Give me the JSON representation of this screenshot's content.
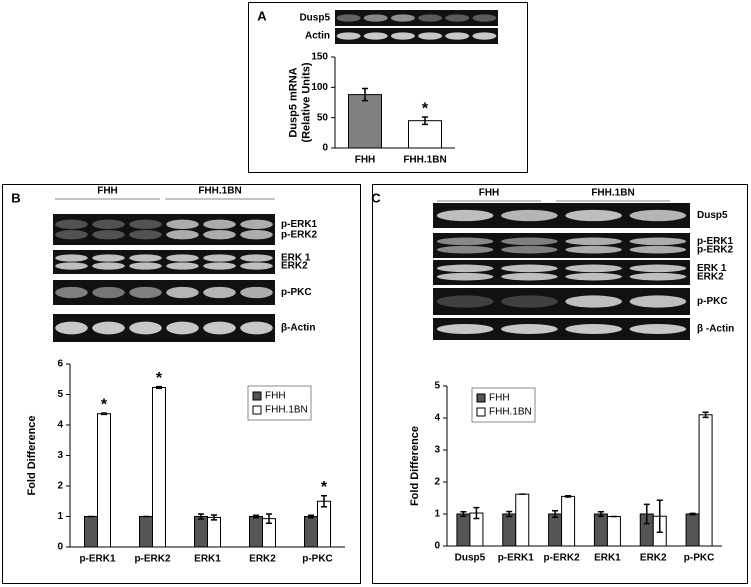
{
  "panels": [
    {
      "label": "A",
      "blots": [
        {
          "labels": [
            "Dusp5"
          ]
        },
        {
          "labels": [
            "Actin"
          ]
        }
      ]
    },
    {
      "label": "B",
      "groups": [
        "FHH",
        "FHH.1BN"
      ],
      "blots": [
        {
          "labels": [
            "p-ERK1",
            "p-ERK2"
          ]
        },
        {
          "labels": [
            "ERK 1",
            "ERK2"
          ]
        },
        {
          "labels": [
            "p-PKC"
          ]
        },
        {
          "labels": [
            "β-Actin"
          ]
        }
      ]
    },
    {
      "label": "C",
      "groups": [
        "FHH",
        "FHH.1BN"
      ],
      "blots": [
        {
          "labels": [
            "Dusp5"
          ]
        },
        {
          "labels": [
            "p-ERK1",
            "p-ERK2"
          ]
        },
        {
          "labels": [
            "ERK 1",
            "ERK2"
          ]
        },
        {
          "labels": [
            "p-PKC"
          ]
        },
        {
          "labels": [
            "β -Actin"
          ]
        }
      ]
    }
  ],
  "chart_data": [
    {
      "type": "bar",
      "ylabel": [
        "Dusp5 mRNA",
        "(Relative Units)"
      ],
      "categories": [
        "FHH",
        "FHH.1BN"
      ],
      "values": [
        88,
        45
      ],
      "errors": [
        10,
        6
      ],
      "colors": [
        "#808080",
        "#ffffff"
      ],
      "ylim": [
        0,
        150
      ],
      "yticks": [
        0,
        50,
        100,
        150
      ],
      "annotations": [
        {
          "text": "*",
          "category": "FHH.1BN"
        }
      ]
    },
    {
      "type": "bar",
      "ylabel": [
        "Fold Difference"
      ],
      "categories": [
        "p-ERK1",
        "p-ERK2",
        "ERK1",
        "ERK2",
        "p-PKC"
      ],
      "series": [
        {
          "name": "FHH",
          "color": "#555555",
          "values": [
            1,
            1,
            1,
            1,
            1
          ],
          "errors": [
            0,
            0,
            0.08,
            0.04,
            0.04
          ]
        },
        {
          "name": "FHH.1BN",
          "color": "#ffffff",
          "values": [
            4.37,
            5.23,
            0.97,
            0.93,
            1.5
          ],
          "errors": [
            0.02,
            0.03,
            0.08,
            0.15,
            0.18
          ]
        }
      ],
      "ylim": [
        0,
        6
      ],
      "yticks": [
        0,
        1,
        2,
        3,
        4,
        5,
        6
      ],
      "legend": "upper right",
      "annotations": [
        {
          "text": "*",
          "category": "p-ERK1"
        },
        {
          "text": "*",
          "category": "p-ERK2"
        },
        {
          "text": "*",
          "category": "p-PKC"
        }
      ]
    },
    {
      "type": "bar",
      "ylabel": [
        "Fold Difference"
      ],
      "categories": [
        "Dusp5",
        "p-ERK1",
        "p-ERK2",
        "ERK1",
        "ERK2",
        "p-PKC"
      ],
      "series": [
        {
          "name": "FHH",
          "color": "#555555",
          "values": [
            1,
            1,
            1,
            1,
            1,
            1
          ],
          "errors": [
            0.07,
            0.08,
            0.1,
            0.07,
            0.3,
            0.02
          ]
        },
        {
          "name": "FHH.1BN",
          "color": "#ffffff",
          "values": [
            1.03,
            1.62,
            1.55,
            0.92,
            0.93,
            4.1
          ],
          "errors": [
            0.17,
            0,
            0.02,
            0,
            0.5,
            0.08
          ]
        }
      ],
      "ylim": [
        0,
        5
      ],
      "yticks": [
        0,
        1,
        2,
        3,
        4,
        5
      ],
      "legend": "upper right"
    }
  ]
}
